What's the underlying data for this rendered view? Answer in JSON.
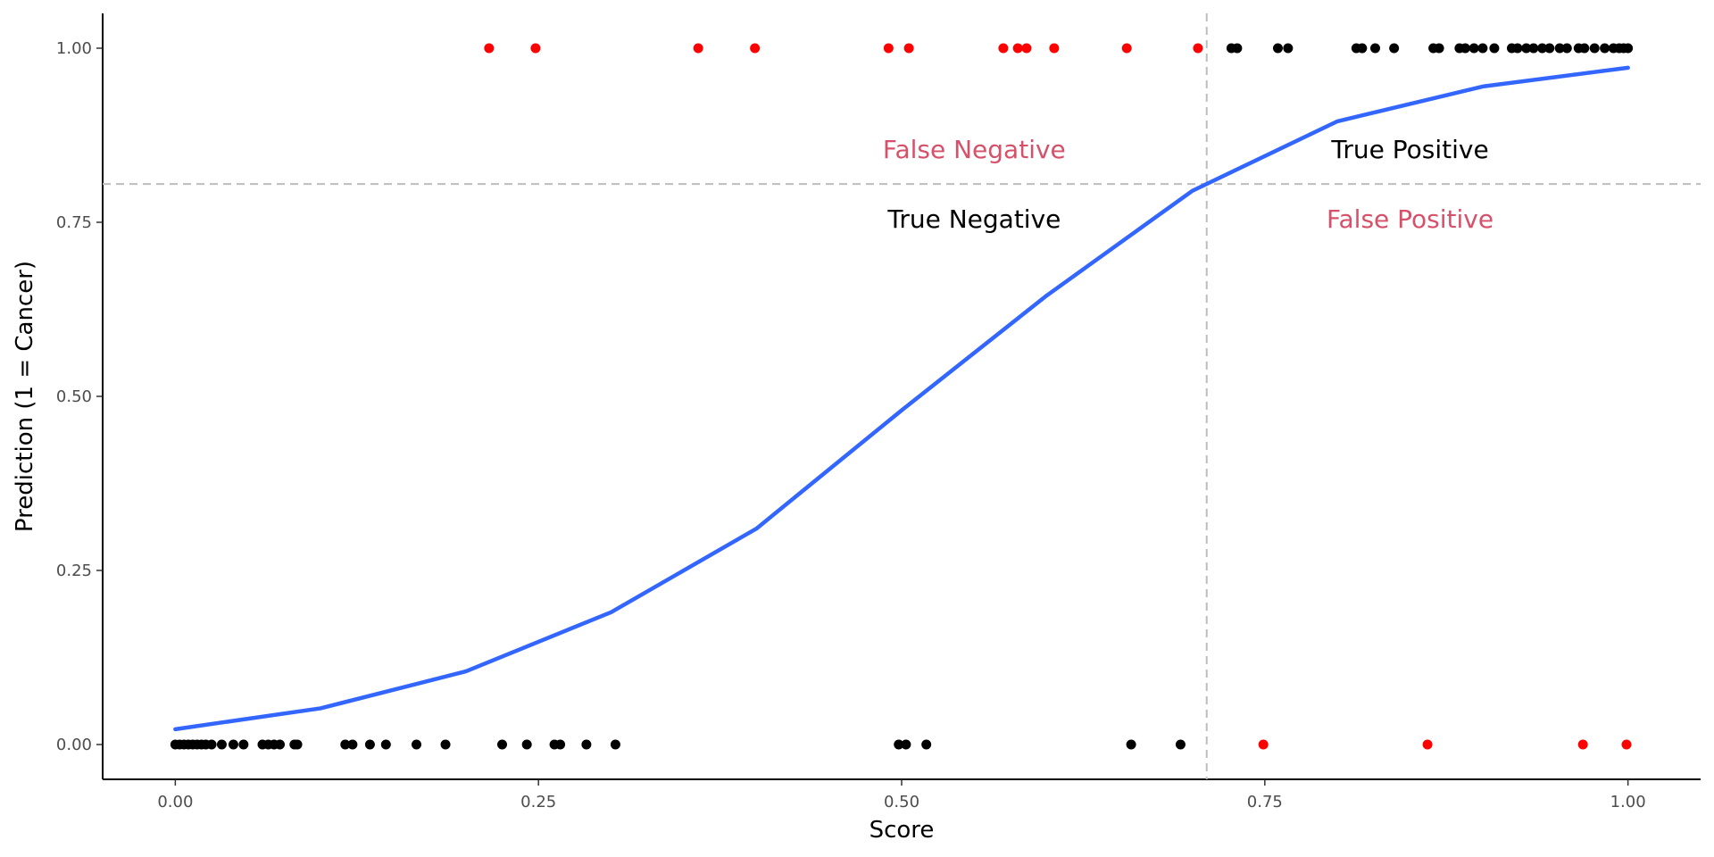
{
  "chart_data": {
    "type": "scatter",
    "title": "",
    "xlabel": "Score",
    "ylabel": "Prediction (1 = Cancer)",
    "xlim": [
      -0.05,
      1.05
    ],
    "ylim": [
      -0.05,
      1.05
    ],
    "x_ticks": [
      0,
      0.25,
      0.5,
      0.75,
      1.0
    ],
    "x_tick_labels": [
      "0.00",
      "0.25",
      "0.50",
      "0.75",
      "1.00"
    ],
    "y_ticks": [
      0,
      0.25,
      0.5,
      0.75,
      1.0
    ],
    "y_tick_labels": [
      "0.00",
      "0.25",
      "0.50",
      "0.75",
      "1.00"
    ],
    "grid": false,
    "threshold_x": 0.71,
    "threshold_y": 0.805,
    "quadrant_labels": [
      {
        "text": "False Negative",
        "x": 0.55,
        "y": 0.855,
        "color": "#d6506a"
      },
      {
        "text": "True Positive",
        "x": 0.85,
        "y": 0.855,
        "color": "#000000"
      },
      {
        "text": "True Negative",
        "x": 0.55,
        "y": 0.755,
        "color": "#000000"
      },
      {
        "text": "False Positive",
        "x": 0.85,
        "y": 0.755,
        "color": "#d6506a"
      }
    ],
    "colors": {
      "correct": "#000000",
      "misclassified": "#ff0000",
      "curve": "#3366ff",
      "reference": "#bdbdbd"
    },
    "series": [
      {
        "name": "",
        "type": "scatter",
        "color": "#000000",
        "points": [
          [
            0.0,
            0
          ],
          [
            0.003,
            0
          ],
          [
            0.006,
            0
          ],
          [
            0.009,
            0
          ],
          [
            0.012,
            0
          ],
          [
            0.015,
            0
          ],
          [
            0.018,
            0
          ],
          [
            0.021,
            0
          ],
          [
            0.025,
            0
          ],
          [
            0.032,
            0
          ],
          [
            0.04,
            0
          ],
          [
            0.047,
            0
          ],
          [
            0.06,
            0
          ],
          [
            0.064,
            0
          ],
          [
            0.068,
            0
          ],
          [
            0.072,
            0
          ],
          [
            0.082,
            0
          ],
          [
            0.084,
            0
          ],
          [
            0.117,
            0
          ],
          [
            0.122,
            0
          ],
          [
            0.134,
            0
          ],
          [
            0.145,
            0
          ],
          [
            0.166,
            0
          ],
          [
            0.186,
            0
          ],
          [
            0.225,
            0
          ],
          [
            0.242,
            0
          ],
          [
            0.261,
            0
          ],
          [
            0.265,
            0
          ],
          [
            0.283,
            0
          ],
          [
            0.303,
            0
          ],
          [
            0.498,
            0
          ],
          [
            0.503,
            0
          ],
          [
            0.517,
            0
          ],
          [
            0.658,
            0
          ],
          [
            0.692,
            0
          ],
          [
            0.727,
            1
          ],
          [
            0.731,
            1
          ],
          [
            0.759,
            1
          ],
          [
            0.766,
            1
          ],
          [
            0.813,
            1
          ],
          [
            0.817,
            1
          ],
          [
            0.826,
            1
          ],
          [
            0.839,
            1
          ],
          [
            0.866,
            1
          ],
          [
            0.87,
            1
          ],
          [
            0.884,
            1
          ],
          [
            0.888,
            1
          ],
          [
            0.894,
            1
          ],
          [
            0.9,
            1
          ],
          [
            0.908,
            1
          ],
          [
            0.92,
            1
          ],
          [
            0.924,
            1
          ],
          [
            0.93,
            1
          ],
          [
            0.935,
            1
          ],
          [
            0.941,
            1
          ],
          [
            0.946,
            1
          ],
          [
            0.953,
            1
          ],
          [
            0.958,
            1
          ],
          [
            0.966,
            1
          ],
          [
            0.97,
            1
          ],
          [
            0.977,
            1
          ],
          [
            0.984,
            1
          ],
          [
            0.99,
            1
          ],
          [
            0.994,
            1
          ],
          [
            0.997,
            1
          ],
          [
            1.0,
            1
          ]
        ]
      },
      {
        "name": "",
        "type": "scatter",
        "color": "#ff0000",
        "points": [
          [
            0.216,
            1
          ],
          [
            0.248,
            1
          ],
          [
            0.36,
            1
          ],
          [
            0.399,
            1
          ],
          [
            0.491,
            1
          ],
          [
            0.505,
            1
          ],
          [
            0.57,
            1
          ],
          [
            0.58,
            1
          ],
          [
            0.586,
            1
          ],
          [
            0.605,
            1
          ],
          [
            0.655,
            1
          ],
          [
            0.704,
            1
          ],
          [
            0.749,
            0
          ],
          [
            0.862,
            0
          ],
          [
            0.969,
            0
          ],
          [
            0.999,
            0
          ]
        ]
      },
      {
        "name": "",
        "type": "line",
        "color": "#3366ff",
        "points": [
          [
            0.0,
            0.022
          ],
          [
            0.1,
            0.052
          ],
          [
            0.2,
            0.105
          ],
          [
            0.3,
            0.19
          ],
          [
            0.4,
            0.31
          ],
          [
            0.5,
            0.48
          ],
          [
            0.6,
            0.645
          ],
          [
            0.7,
            0.795
          ],
          [
            0.8,
            0.895
          ],
          [
            0.9,
            0.945
          ],
          [
            1.0,
            0.972
          ]
        ]
      }
    ]
  }
}
